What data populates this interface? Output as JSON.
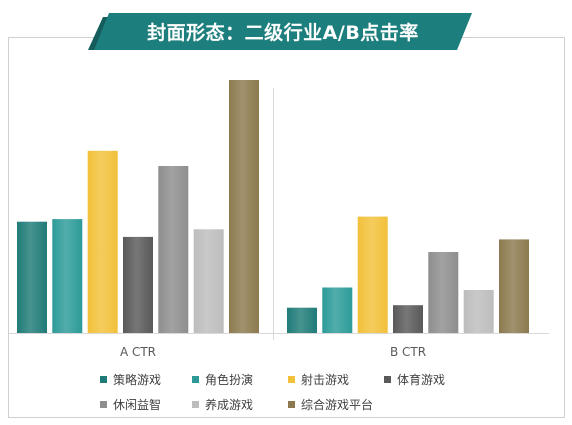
{
  "colors": {
    "banner": "#1d7f7d",
    "frame": "#cdd1d1",
    "gridline": "#d9d9d9",
    "category_text": "#595959"
  },
  "chart_data": {
    "type": "bar",
    "title": "封面形态：二级行业A/B点击率",
    "categories": [
      "A CTR",
      "B CTR"
    ],
    "ylim": [
      0,
      100
    ],
    "grid": false,
    "legend": "bottom",
    "series": [
      {
        "name": "策略游戏",
        "color": "#1f7b78",
        "values": [
          44,
          10
        ]
      },
      {
        "name": "角色扮演",
        "color": "#2c9b98",
        "values": [
          45,
          18
        ]
      },
      {
        "name": "射击游戏",
        "color": "#f2c13a",
        "values": [
          72,
          46
        ]
      },
      {
        "name": "体育游戏",
        "color": "#595959",
        "values": [
          38,
          11
        ]
      },
      {
        "name": "休闲益智",
        "color": "#8e8e8e",
        "values": [
          66,
          32
        ]
      },
      {
        "name": "养成游戏",
        "color": "#bdbdbd",
        "values": [
          41,
          17
        ]
      },
      {
        "name": "综合游戏平台",
        "color": "#8c7a4e",
        "values": [
          100,
          37
        ]
      }
    ]
  }
}
